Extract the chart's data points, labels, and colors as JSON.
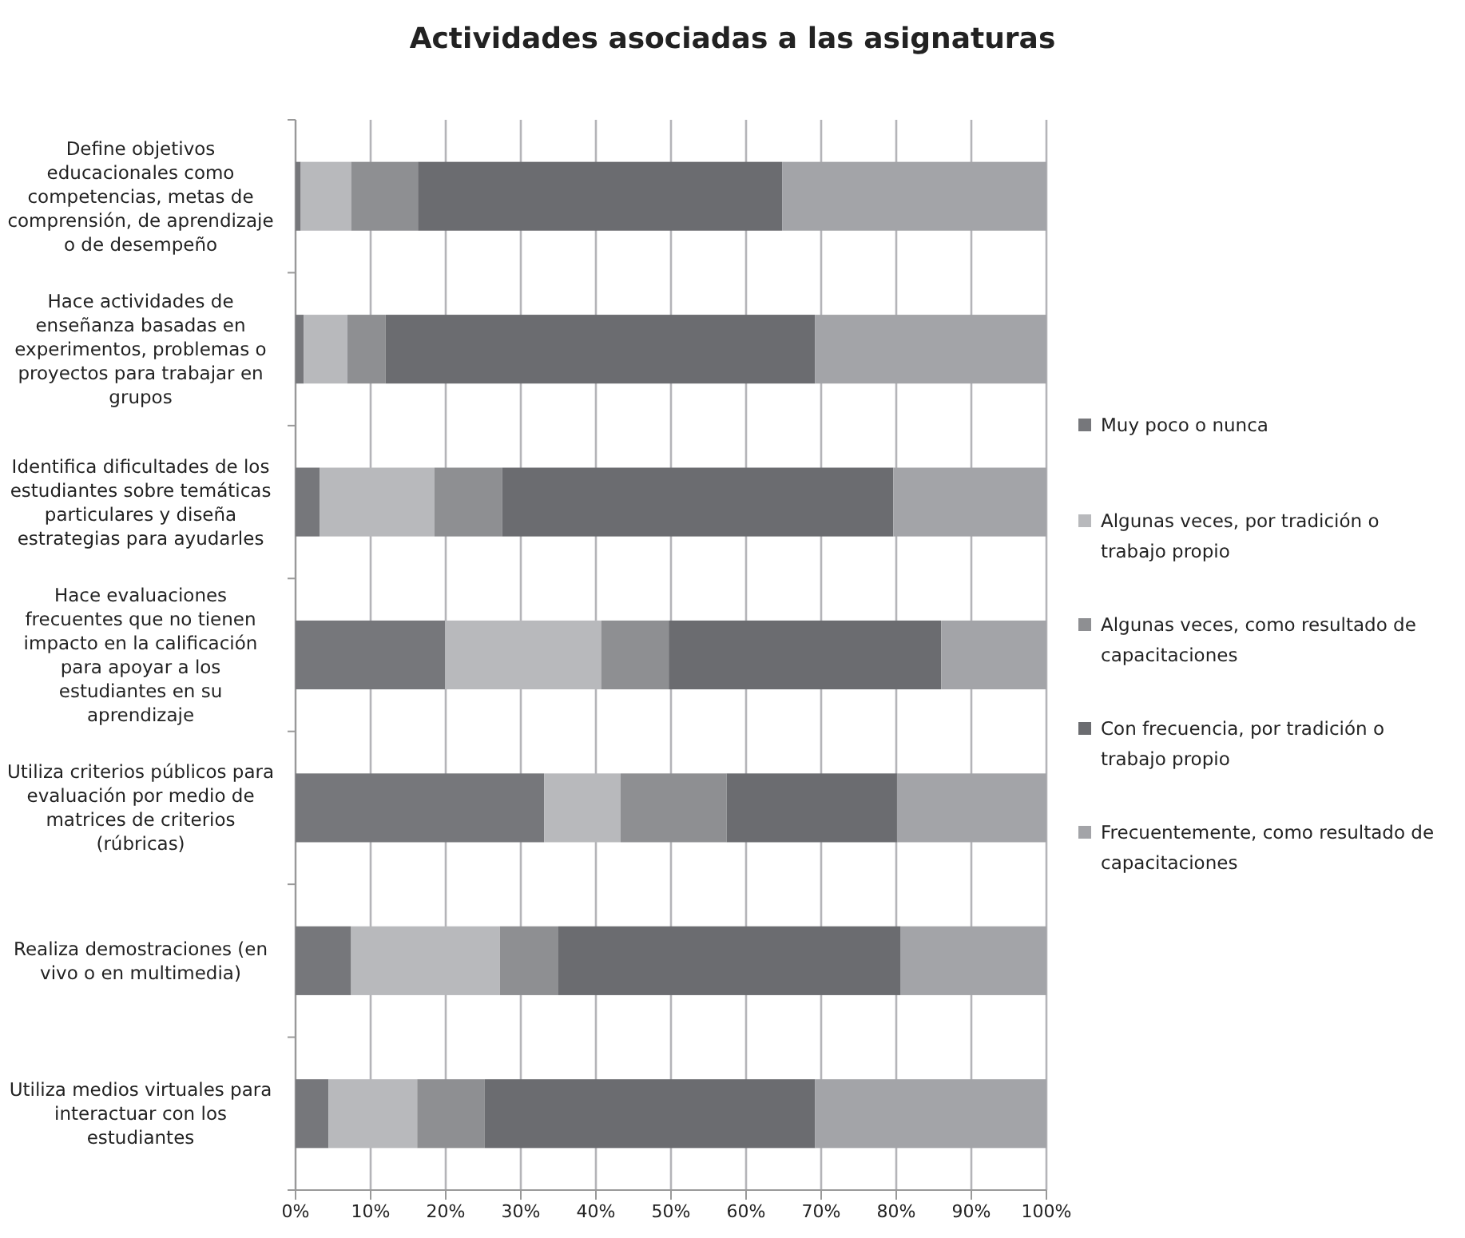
{
  "chart_data": {
    "type": "bar",
    "orientation": "horizontal",
    "stacked": true,
    "title": "Actividades asociadas a las asignaturas",
    "categories": [
      "Define objetivos educacionales como competencias, metas de comprensión, de aprendizaje o de desempeño",
      "Hace actividades de enseñanza basadas en experimentos, problemas o proyectos para trabajar en grupos",
      "Identifica dificultades de los estudiantes sobre temáticas particulares y diseña estrategias para ayudarles",
      "Hace evaluaciones frecuentes que no tienen impacto en la calificación para apoyar a los estudiantes en su aprendizaje",
      "Utiliza criterios públicos para evaluación por medio de matrices de criterios (rúbricas)",
      "Realiza demostraciones (en vivo o en multimedia)",
      "Utiliza medios virtuales para interactuar con los estudiantes"
    ],
    "series": [
      {
        "name": "Muy poco o nunca",
        "color": "#76777b",
        "values": [
          0.7,
          1.1,
          3.2,
          19.9,
          33.1,
          7.4,
          4.4
        ]
      },
      {
        "name": "Algunas veces, por tradición o trabajo propio",
        "color": "#b8b9bc",
        "values": [
          6.7,
          5.8,
          15.3,
          20.8,
          10.2,
          19.8,
          11.8
        ]
      },
      {
        "name": "Algunas veces, como resultado de capacitaciones",
        "color": "#8e8f92",
        "values": [
          8.9,
          5.1,
          9.0,
          9.0,
          14.1,
          7.8,
          9.0
        ]
      },
      {
        "name": "Con frecuencia, por tradición o trabajo propio",
        "color": "#6b6c70",
        "values": [
          48.5,
          57.2,
          52.1,
          36.3,
          22.7,
          45.6,
          44.0
        ]
      },
      {
        "name": "Frecuentemente, como resultado de capacitaciones",
        "color": "#a3a4a8",
        "values": [
          35.2,
          30.8,
          20.4,
          14.0,
          19.9,
          19.4,
          30.8
        ]
      }
    ],
    "xlim": [
      0,
      100
    ],
    "xticks": [
      {
        "value": 0,
        "label": "0%"
      },
      {
        "value": 10,
        "label": "10%"
      },
      {
        "value": 20,
        "label": "20%"
      },
      {
        "value": 30,
        "label": "30%"
      },
      {
        "value": 40,
        "label": "40%"
      },
      {
        "value": 50,
        "label": "50%"
      },
      {
        "value": 60,
        "label": "60%"
      },
      {
        "value": 70,
        "label": "70%"
      },
      {
        "value": 80,
        "label": "80%"
      },
      {
        "value": 90,
        "label": "90%"
      },
      {
        "value": 100,
        "label": "100%"
      }
    ],
    "grid": "x",
    "legend": "right"
  }
}
